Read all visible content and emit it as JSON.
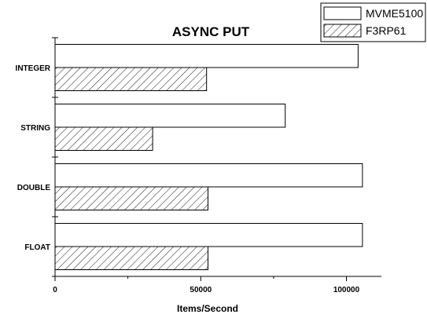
{
  "chart_data": {
    "type": "bar",
    "orientation": "horizontal",
    "title": "ASYNC PUT",
    "xlabel": "Items/Second",
    "ylabel": "",
    "categories": [
      "INTEGER",
      "STRING",
      "DOUBLE",
      "FLOAT"
    ],
    "series": [
      {
        "name": "MVME5100",
        "values": [
          104000,
          79000,
          105500,
          105500
        ],
        "fill": "#ffffff",
        "pattern": "none"
      },
      {
        "name": "F3RP61",
        "values": [
          52000,
          33500,
          52500,
          52500
        ],
        "fill": "#ffffff",
        "pattern": "diagonal-hatch"
      }
    ],
    "xlim": [
      0,
      112000
    ],
    "xticks": [
      0,
      50000,
      100000
    ],
    "xtick_labels": [
      "0",
      "50000",
      "100000"
    ],
    "legend": "top-right",
    "grid": false,
    "colors": {
      "stroke": "#000000",
      "background": "#ffffff"
    }
  }
}
